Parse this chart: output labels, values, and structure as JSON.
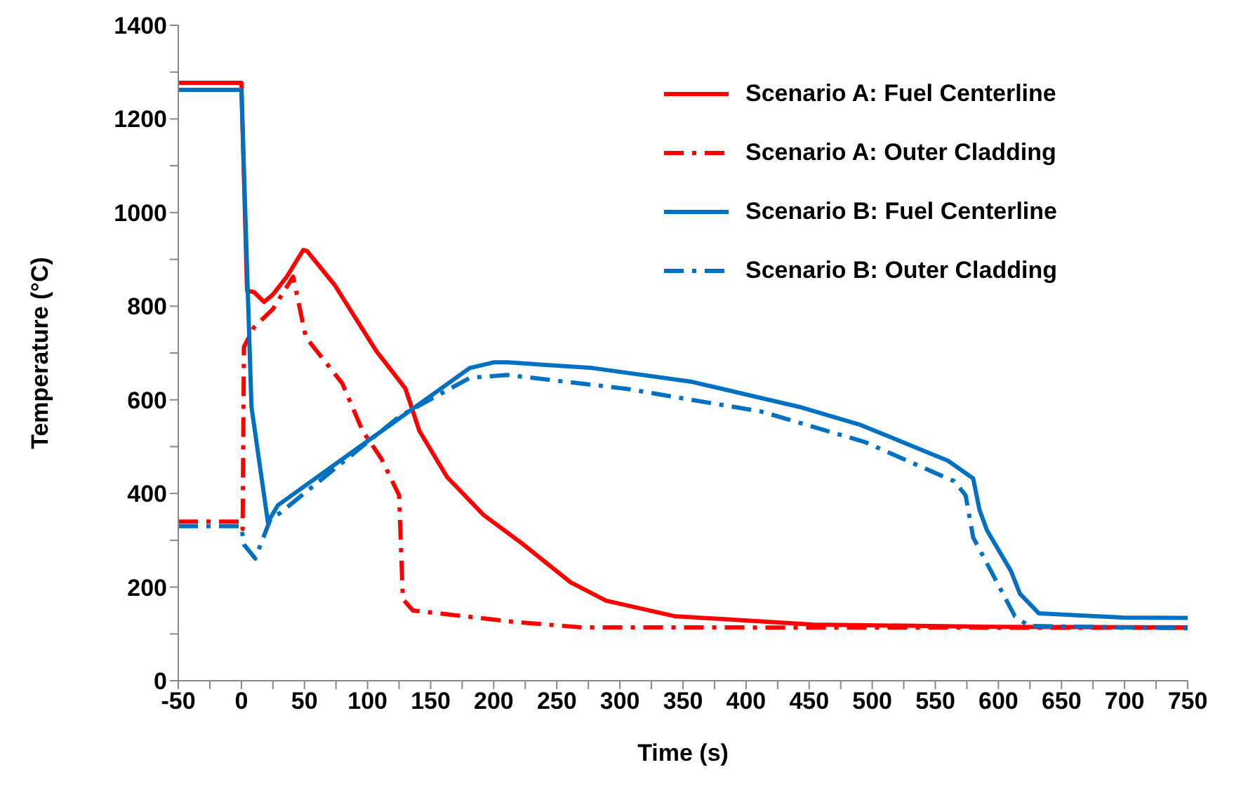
{
  "chart_data": {
    "type": "line",
    "xlabel": "Time (s)",
    "ylabel": "Temperature (°C)",
    "xlim": [
      -50,
      750
    ],
    "xticks": [
      -50,
      {
        "value": -25,
        "label": null
      },
      0,
      {
        "value": 25,
        "label": null
      },
      50,
      {
        "value": 75,
        "label": null
      },
      100,
      {
        "value": 125,
        "label": null
      },
      150,
      {
        "value": 175,
        "label": null
      },
      200,
      {
        "value": 225,
        "label": null
      },
      250,
      {
        "value": 275,
        "label": null
      },
      300,
      {
        "value": 325,
        "label": null
      },
      350,
      {
        "value": 375,
        "label": null
      },
      400,
      {
        "value": 425,
        "label": null
      },
      450,
      {
        "value": 475,
        "label": null
      },
      500,
      {
        "value": 525,
        "label": null
      },
      550,
      {
        "value": 575,
        "label": null
      },
      600,
      {
        "value": 625,
        "label": null
      },
      650,
      {
        "value": 675,
        "label": null
      },
      700,
      {
        "value": 725,
        "label": null
      },
      750
    ],
    "ylim": [
      0,
      1400
    ],
    "yticks": [
      0,
      {
        "value": 100,
        "label": null
      },
      200,
      {
        "value": 300,
        "label": null
      },
      400,
      {
        "value": 500,
        "label": null
      },
      600,
      {
        "value": 700,
        "label": null
      },
      800,
      {
        "value": 900,
        "label": null
      },
      1000,
      {
        "value": 1100,
        "label": null
      },
      1200,
      {
        "value": 1300,
        "label": null
      },
      1400
    ],
    "legend": "top right",
    "series": [
      {
        "name": "Scenario A: Fuel Centerline",
        "color": "#ff0000",
        "line_style": "solid",
        "x": [
          -50,
          0,
          4.5,
          10,
          18,
          25,
          36,
          49,
          52,
          74,
          107,
          130,
          141,
          163,
          192,
          222,
          261,
          289,
          343,
          453,
          600,
          750
        ],
        "values": [
          1277,
          1277,
          833,
          830,
          809,
          825,
          863,
          920,
          918,
          845,
          704,
          624,
          534,
          435,
          354,
          294,
          210,
          171,
          138,
          120,
          115,
          114
        ]
      },
      {
        "name": "Scenario A: Outer Cladding",
        "color": "#ff0000",
        "line_style": "dashed",
        "x": [
          -50,
          0,
          1,
          2,
          10,
          25,
          41,
          51,
          80,
          96,
          111,
          125,
          128,
          136,
          215,
          270,
          750
        ],
        "values": [
          340,
          340,
          324,
          713,
          755,
          794,
          863,
          734,
          635,
          534,
          474,
          396,
          174,
          150,
          126,
          114,
          113
        ]
      },
      {
        "name": "Scenario B: Fuel Centerline",
        "color": "#0070c0",
        "line_style": "solid",
        "x": [
          -50,
          0,
          8,
          21,
          29,
          181,
          200,
          211,
          278,
          356,
          442,
          491,
          560,
          580,
          585,
          591,
          610,
          617,
          632,
          699,
          750
        ],
        "values": [
          1262,
          1262,
          585,
          339,
          375,
          668,
          680,
          680,
          668,
          639,
          585,
          546,
          470,
          432,
          365,
          321,
          234,
          186,
          144,
          135,
          134
        ]
      },
      {
        "name": "Scenario B: Outer Cladding",
        "color": "#0070c0",
        "line_style": "dashed",
        "x": [
          -50,
          0,
          2,
          11,
          23,
          30,
          125,
          181,
          211,
          304,
          412,
          494,
          565,
          574,
          580,
          613,
          624,
          750
        ],
        "values": [
          330,
          330,
          291,
          261,
          345,
          357,
          564,
          647,
          653,
          624,
          575,
          510,
          426,
          396,
          306,
          138,
          117,
          112
        ]
      }
    ]
  }
}
